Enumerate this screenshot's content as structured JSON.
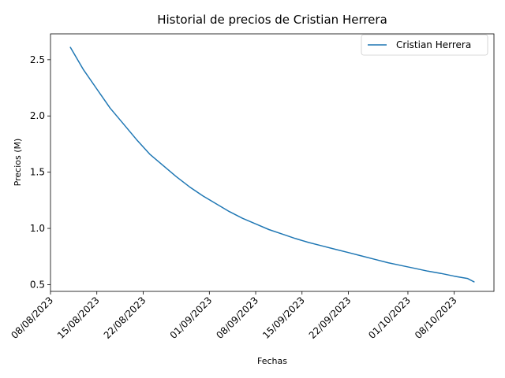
{
  "chart_data": {
    "type": "line",
    "title": "Historial de precios de Cristian Herrera",
    "xlabel": "Fechas",
    "ylabel": "Precios (M)",
    "x_ticks": [
      "08/08/2023",
      "15/08/2023",
      "22/08/2023",
      "01/09/2023",
      "08/09/2023",
      "15/09/2023",
      "22/09/2023",
      "01/10/2023",
      "08/10/2023"
    ],
    "y_ticks": [
      "0.5",
      "1.0",
      "1.5",
      "2.0",
      "2.5"
    ],
    "ylim": [
      0.44,
      2.73
    ],
    "xlim": [
      "2023-08-08",
      "2023-10-14"
    ],
    "legend": {
      "position": "top-right",
      "entries": [
        "Cristian Herrera"
      ]
    },
    "grid": false,
    "series": [
      {
        "name": "Cristian Herrera",
        "color": "#1f77b4",
        "x": [
          "2023-08-11",
          "2023-08-13",
          "2023-08-15",
          "2023-08-17",
          "2023-08-19",
          "2023-08-21",
          "2023-08-23",
          "2023-08-25",
          "2023-08-27",
          "2023-08-29",
          "2023-08-31",
          "2023-09-02",
          "2023-09-04",
          "2023-09-06",
          "2023-09-08",
          "2023-09-10",
          "2023-09-12",
          "2023-09-14",
          "2023-09-16",
          "2023-09-18",
          "2023-09-20",
          "2023-09-22",
          "2023-09-24",
          "2023-09-26",
          "2023-09-28",
          "2023-09-30",
          "2023-10-02",
          "2023-10-04",
          "2023-10-06",
          "2023-10-08",
          "2023-10-10",
          "2023-10-11"
        ],
        "values": [
          2.61,
          2.41,
          2.24,
          2.07,
          1.93,
          1.79,
          1.66,
          1.56,
          1.46,
          1.37,
          1.29,
          1.22,
          1.15,
          1.09,
          1.04,
          0.99,
          0.95,
          0.91,
          0.875,
          0.845,
          0.815,
          0.785,
          0.755,
          0.725,
          0.695,
          0.67,
          0.645,
          0.62,
          0.6,
          0.575,
          0.555,
          0.525
        ]
      }
    ]
  }
}
